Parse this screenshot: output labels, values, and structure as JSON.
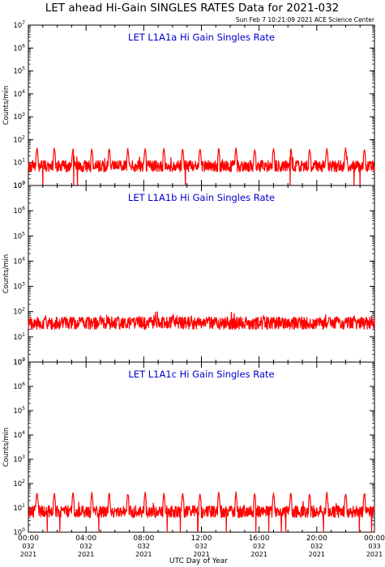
{
  "header": {
    "title": "LET ahead Hi-Gain SINGLES RATES Data for 2021-032",
    "timestamp": "Sun Feb  7 10:21:09 2021 ACE Science Center"
  },
  "colors": {
    "trace": "#ff0000",
    "panel_title": "#0000cc",
    "axes": "#000000"
  },
  "chart_data": [
    {
      "type": "line",
      "title": "LET L1A1a Hi Gain Singles Rate",
      "ylabel": "Counts/min",
      "yscale": "log",
      "ylim": [
        1,
        10000000
      ],
      "xlim": [
        0,
        24
      ],
      "grid": false,
      "legend": "none",
      "series": [
        {
          "baseline": 7,
          "spikes_at_hours": [
            0.6,
            1.8,
            3.1,
            4.4,
            5.6,
            6.9,
            8.1,
            9.4,
            10.7,
            11.9,
            13.2,
            14.4,
            15.7,
            17.0,
            18.2,
            19.5,
            20.7,
            22.0,
            23.3
          ],
          "spike_value": 45,
          "dip_value": 1
        }
      ]
    },
    {
      "type": "line",
      "title": "LET L1A1b Hi Gain Singles Rate",
      "ylabel": "Counts/min",
      "yscale": "log",
      "ylim": [
        1,
        10000000
      ],
      "xlim": [
        0,
        24
      ],
      "grid": false,
      "legend": "none",
      "series": [
        {
          "baseline": 35,
          "spikes_at_hours": [
            1.2,
            2.5,
            3.7,
            5.0,
            6.2,
            7.5,
            8.8,
            10.0,
            11.3,
            12.5,
            13.8,
            15.1,
            16.3,
            17.6,
            18.8,
            20.1,
            21.4,
            22.6,
            23.8
          ],
          "spike_value": 70,
          "dip_value": 28
        }
      ]
    },
    {
      "type": "line",
      "title": "LET L1A1c Hi Gain Singles Rate",
      "ylabel": "Counts/min",
      "yscale": "log",
      "ylim": [
        1,
        10000000
      ],
      "xlim": [
        0,
        24
      ],
      "grid": false,
      "legend": "none",
      "series": [
        {
          "baseline": 7,
          "spikes_at_hours": [
            0.6,
            1.8,
            3.1,
            4.4,
            5.6,
            6.9,
            8.1,
            9.4,
            10.7,
            11.9,
            13.2,
            14.4,
            15.7,
            17.0,
            18.2,
            19.5,
            20.7,
            22.0,
            23.3
          ],
          "spike_value": 45,
          "dip_value": 1
        }
      ]
    }
  ],
  "x_axis": {
    "xlabel": "UTC Day of Year",
    "ticks": [
      {
        "hour": 0,
        "time": "00:00",
        "day": "032",
        "year": "2021"
      },
      {
        "hour": 4,
        "time": "04:00",
        "day": "032",
        "year": "2021"
      },
      {
        "hour": 8,
        "time": "08:00",
        "day": "032",
        "year": "2021"
      },
      {
        "hour": 12,
        "time": "12:00",
        "day": "032",
        "year": "2021"
      },
      {
        "hour": 16,
        "time": "16:00",
        "day": "032",
        "year": "2021"
      },
      {
        "hour": 20,
        "time": "20:00",
        "day": "032",
        "year": "2021"
      },
      {
        "hour": 24,
        "time": "00:00",
        "day": "033",
        "year": "2021"
      }
    ]
  }
}
